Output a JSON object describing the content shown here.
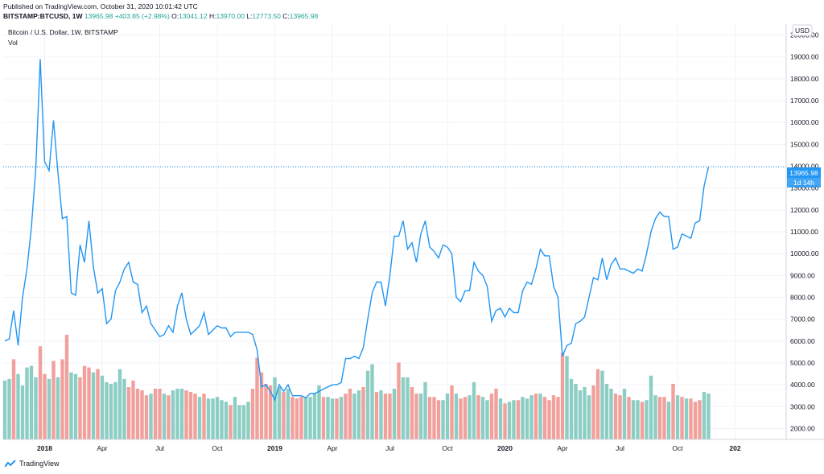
{
  "header": {
    "published": "Published on TradingView.com, October 31, 2020 10:01:42 UTC",
    "symbol": "BITSTAMP:BTCUSD, 1W",
    "last": "13965.98",
    "change": "+403.85 (+2.98%)",
    "open_label": "O:",
    "open": "13041.12",
    "high_label": "H:",
    "high": "13970.00",
    "low_label": "L:",
    "low": "12773.50",
    "close_label": "C:",
    "close": "13965.98"
  },
  "legend": {
    "title": "Bitcoin / U.S. Dollar, 1W, BITSTAMP",
    "vol": "Vol"
  },
  "footer": {
    "brand": "TradingView"
  },
  "colors": {
    "line": "#2196f3",
    "vol_up": "#8ccdc4",
    "vol_down": "#f1a09c",
    "grid": "#f0f3fa",
    "last_price": "#2196f3"
  },
  "chart_data": {
    "type": "line",
    "title": "Bitcoin / U.S. Dollar, 1W, BITSTAMP",
    "ylabel": "USD",
    "ylim": [
      1500,
      20500
    ],
    "y_ticks": [
      "2000.00",
      "3000.00",
      "4000.00",
      "5000.00",
      "6000.00",
      "7000.00",
      "8000.00",
      "9000.00",
      "10000.00",
      "11000.00",
      "12000.00",
      "13000.00",
      "14000.00",
      "15000.00",
      "16000.00",
      "17000.00",
      "18000.00",
      "19000.00",
      "20000.00"
    ],
    "x_ticks": [
      {
        "label": "2018",
        "week": 9,
        "bold": true
      },
      {
        "label": "Apr",
        "week": 22
      },
      {
        "label": "Jul",
        "week": 35
      },
      {
        "label": "Oct",
        "week": 48
      },
      {
        "label": "2019",
        "week": 61,
        "bold": true
      },
      {
        "label": "Apr",
        "week": 74
      },
      {
        "label": "Jul",
        "week": 87
      },
      {
        "label": "Oct",
        "week": 100
      },
      {
        "label": "2020",
        "week": 113,
        "bold": true
      },
      {
        "label": "Apr",
        "week": 126
      },
      {
        "label": "Jul",
        "week": 139
      },
      {
        "label": "Oct",
        "week": 152
      },
      {
        "label": "202",
        "week": 165,
        "bold": true
      }
    ],
    "last_price_label": "13965.98",
    "countdown_label": "1d 14h",
    "series": [
      {
        "name": "BTCUSD",
        "values": [
          6000,
          6100,
          7400,
          5800,
          8000,
          9300,
          11200,
          13900,
          18900,
          14200,
          13800,
          16100,
          13700,
          11600,
          11700,
          8200,
          8100,
          10400,
          9600,
          11500,
          9400,
          8200,
          8400,
          6800,
          7000,
          8300,
          8700,
          9300,
          9600,
          8700,
          8600,
          7300,
          7600,
          6800,
          6500,
          6200,
          6300,
          6700,
          6400,
          7600,
          8200,
          7000,
          6300,
          6500,
          6700,
          7300,
          6300,
          6500,
          6700,
          6600,
          6600,
          6200,
          6400,
          6400,
          6400,
          6400,
          6300,
          5600,
          3900,
          4000,
          3700,
          3300,
          4000,
          3700,
          4000,
          3500,
          3500,
          3500,
          3400,
          3600,
          3600,
          3700,
          3800,
          3900,
          4000,
          4000,
          4100,
          5200,
          5200,
          5300,
          5200,
          5700,
          7000,
          8200,
          8700,
          8700,
          7600,
          9000,
          10800,
          10800,
          11500,
          10200,
          10500,
          9600,
          10900,
          11500,
          10300,
          10100,
          9800,
          10400,
          10300,
          10000,
          8000,
          7800,
          8300,
          8300,
          9600,
          9200,
          9000,
          8500,
          6900,
          7400,
          7500,
          7100,
          7500,
          7300,
          7300,
          8300,
          8700,
          8600,
          9300,
          10200,
          9900,
          9900,
          8500,
          8000,
          5300,
          5800,
          5900,
          6800,
          6900,
          7100,
          8000,
          8900,
          8800,
          9800,
          8800,
          9500,
          9800,
          9300,
          9300,
          9200,
          9100,
          9300,
          9200,
          10000,
          11000,
          11600,
          11900,
          11700,
          11700,
          10200,
          10300,
          10900,
          10800,
          10700,
          11400,
          11500,
          13100,
          13966
        ]
      },
      {
        "name": "Vol",
        "values": [
          3600,
          3700,
          4900,
          4000,
          3300,
          4400,
          4500,
          3800,
          5700,
          4000,
          3700,
          4800,
          3800,
          4900,
          6400,
          4100,
          4000,
          3800,
          4500,
          4400,
          4100,
          4300,
          3900,
          3500,
          3400,
          3500,
          4300,
          3700,
          3200,
          3600,
          3100,
          3000,
          2700,
          2800,
          3100,
          3100,
          2800,
          2700,
          3000,
          3100,
          3100,
          3000,
          2900,
          2800,
          2600,
          2800,
          2500,
          2500,
          2600,
          2400,
          2300,
          2100,
          2600,
          2100,
          2100,
          2300,
          3100,
          5000,
          4100,
          3400,
          3300,
          3800,
          3200,
          2900,
          3100,
          2600,
          2500,
          2600,
          2600,
          2600,
          2800,
          3300,
          2600,
          2600,
          2500,
          2500,
          2600,
          2800,
          3100,
          2800,
          3000,
          3200,
          4200,
          4600,
          2900,
          3000,
          2800,
          2800,
          3100,
          4700,
          3800,
          3800,
          3200,
          2800,
          2800,
          3500,
          2600,
          2600,
          2400,
          2400,
          2800,
          3300,
          2800,
          2500,
          2600,
          2700,
          3500,
          2700,
          2600,
          2400,
          2800,
          3100,
          2500,
          2200,
          2300,
          2400,
          2400,
          2600,
          2500,
          2700,
          2800,
          2800,
          2600,
          2400,
          2700,
          2600,
          5300,
          5100,
          3700,
          3400,
          3000,
          3200,
          2700,
          3300,
          4300,
          4200,
          3400,
          3100,
          2800,
          2700,
          3100,
          2600,
          2400,
          2400,
          2300,
          2400,
          3900,
          2700,
          2600,
          2600,
          2300,
          3400,
          2700,
          2600,
          2500,
          2500,
          2300,
          2400,
          2900,
          2800
        ],
        "direction": [
          "u",
          "u",
          "d",
          "u",
          "u",
          "u",
          "u",
          "u",
          "d",
          "d",
          "u",
          "d",
          "u",
          "d",
          "d",
          "u",
          "u",
          "d",
          "d",
          "d",
          "u",
          "d",
          "u",
          "u",
          "u",
          "u",
          "u",
          "u",
          "d",
          "d",
          "d",
          "d",
          "d",
          "u",
          "d",
          "d",
          "u",
          "d",
          "u",
          "u",
          "u",
          "d",
          "d",
          "d",
          "u",
          "d",
          "u",
          "u",
          "u",
          "u",
          "u",
          "d",
          "u",
          "u",
          "u",
          "u",
          "d",
          "d",
          "d",
          "d",
          "d",
          "u",
          "u",
          "d",
          "u",
          "d",
          "d",
          "d",
          "u",
          "u",
          "u",
          "u",
          "d",
          "u",
          "u",
          "d",
          "u",
          "d",
          "d",
          "u",
          "u",
          "d",
          "u",
          "u",
          "d",
          "u",
          "d",
          "d",
          "u",
          "d",
          "u",
          "u",
          "d",
          "d",
          "u",
          "u",
          "d",
          "d",
          "d",
          "u",
          "u",
          "d",
          "u",
          "d",
          "d",
          "u",
          "u",
          "d",
          "u",
          "u",
          "d",
          "d",
          "u",
          "d",
          "u",
          "u",
          "d",
          "u",
          "u",
          "u",
          "d",
          "u",
          "d",
          "d",
          "d",
          "d",
          "d",
          "u",
          "u",
          "u",
          "u",
          "u",
          "u",
          "d",
          "d",
          "u",
          "u",
          "u",
          "d",
          "d",
          "u",
          "d",
          "u",
          "u",
          "d",
          "u",
          "u",
          "u",
          "d",
          "d",
          "u",
          "d",
          "u",
          "d",
          "u",
          "d",
          "d",
          "d",
          "u",
          "u"
        ]
      }
    ]
  }
}
